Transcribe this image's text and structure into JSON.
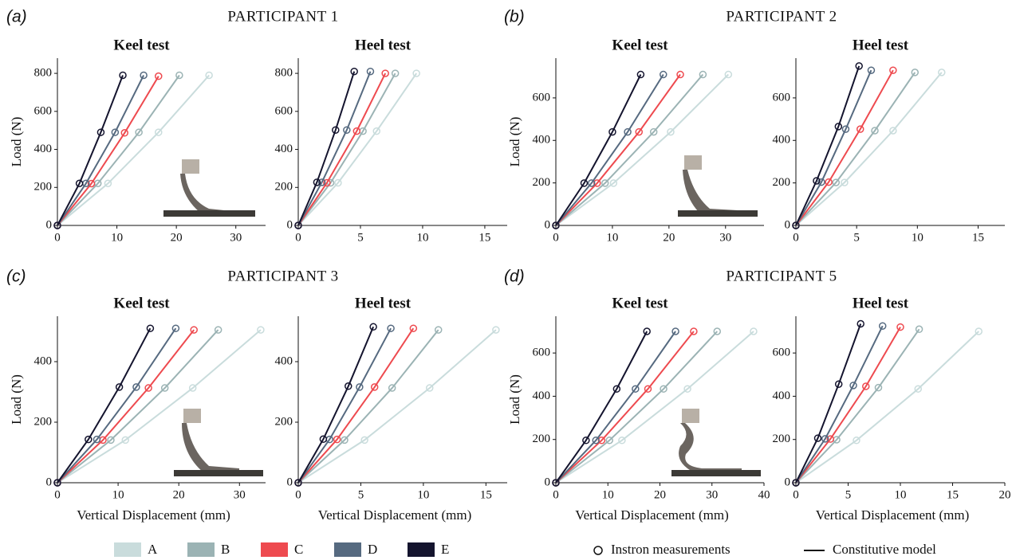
{
  "panels": [
    {
      "label": "(a)",
      "title": "PARTICIPANT 1"
    },
    {
      "label": "(b)",
      "title": "PARTICIPANT 2"
    },
    {
      "label": "(c)",
      "title": "PARTICIPANT 3"
    },
    {
      "label": "(d)",
      "title": "PARTICIPANT 5"
    }
  ],
  "legend_notes": {
    "measurements": "Instron measurements",
    "model": "Constitutive model"
  },
  "chart_data": [
    {
      "type": "line",
      "title": "Keel test",
      "y_label": "Load (N)",
      "xlim": [
        0,
        35
      ],
      "xticks": [
        0,
        10,
        20,
        30
      ],
      "ylim": [
        0,
        880
      ],
      "yticks": [
        0,
        200,
        400,
        600,
        800
      ],
      "series": [
        {
          "name": "A",
          "color": "#c9dcdc",
          "x": [
            0,
            8.5,
            17,
            25.5
          ],
          "values": [
            0,
            221,
            490,
            790
          ]
        },
        {
          "name": "B",
          "color": "#9bb3b4",
          "x": [
            0,
            6.8,
            13.7,
            20.5
          ],
          "values": [
            0,
            221,
            490,
            790
          ]
        },
        {
          "name": "C",
          "color": "#ee4a4f",
          "x": [
            0,
            5.7,
            11.3,
            17
          ],
          "values": [
            0,
            220,
            487,
            785
          ]
        },
        {
          "name": "D",
          "color": "#566a80",
          "x": [
            0,
            4.8,
            9.7,
            14.5
          ],
          "values": [
            0,
            221,
            490,
            790
          ]
        },
        {
          "name": "E",
          "color": "#14142e",
          "x": [
            0,
            3.7,
            7.3,
            11
          ],
          "values": [
            0,
            221,
            490,
            790
          ]
        }
      ]
    },
    {
      "type": "line",
      "title": "Heel test",
      "xlim": [
        0,
        16.8
      ],
      "xticks": [
        0,
        5,
        10,
        15
      ],
      "ylim": [
        0,
        880
      ],
      "yticks": [
        0,
        200,
        400,
        600,
        800
      ],
      "series": [
        {
          "name": "A",
          "color": "#c9dcdc",
          "x": [
            0,
            3.2,
            6.3,
            9.5
          ],
          "values": [
            0,
            224,
            496,
            800
          ]
        },
        {
          "name": "B",
          "color": "#9bb3b4",
          "x": [
            0,
            2.6,
            5.2,
            7.8
          ],
          "values": [
            0,
            224,
            496,
            800
          ]
        },
        {
          "name": "C",
          "color": "#ee4a4f",
          "x": [
            0,
            2.3,
            4.7,
            7
          ],
          "values": [
            0,
            224,
            496,
            800
          ]
        },
        {
          "name": "D",
          "color": "#566a80",
          "x": [
            0,
            1.9,
            3.9,
            5.8
          ],
          "values": [
            0,
            227,
            502,
            810
          ]
        },
        {
          "name": "E",
          "color": "#14142e",
          "x": [
            0,
            1.5,
            3,
            4.5
          ],
          "values": [
            0,
            227,
            502,
            810
          ]
        }
      ]
    },
    {
      "type": "line",
      "title": "Keel test",
      "y_label": "Load (N)",
      "xlim": [
        0,
        36.8
      ],
      "xticks": [
        0,
        10,
        20,
        30
      ],
      "ylim": [
        0,
        787
      ],
      "yticks": [
        0,
        200,
        400,
        600
      ],
      "series": [
        {
          "name": "A",
          "color": "#c9dcdc",
          "x": [
            0,
            10.2,
            20.3,
            30.5
          ],
          "values": [
            0,
            199,
            440,
            710
          ]
        },
        {
          "name": "B",
          "color": "#9bb3b4",
          "x": [
            0,
            8.7,
            17.3,
            26
          ],
          "values": [
            0,
            199,
            440,
            710
          ]
        },
        {
          "name": "C",
          "color": "#ee4a4f",
          "x": [
            0,
            7.3,
            14.7,
            22
          ],
          "values": [
            0,
            199,
            440,
            710
          ]
        },
        {
          "name": "D",
          "color": "#566a80",
          "x": [
            0,
            6.3,
            12.7,
            19
          ],
          "values": [
            0,
            199,
            440,
            710
          ]
        },
        {
          "name": "E",
          "color": "#14142e",
          "x": [
            0,
            5,
            10,
            15
          ],
          "values": [
            0,
            199,
            440,
            710
          ]
        }
      ]
    },
    {
      "type": "line",
      "title": "Heel test",
      "xlim": [
        0,
        17.2
      ],
      "xticks": [
        0,
        5,
        10,
        15
      ],
      "ylim": [
        0,
        787
      ],
      "yticks": [
        0,
        200,
        400,
        600
      ],
      "series": [
        {
          "name": "A",
          "color": "#c9dcdc",
          "x": [
            0,
            4,
            8,
            12
          ],
          "values": [
            0,
            202,
            446,
            720
          ]
        },
        {
          "name": "B",
          "color": "#9bb3b4",
          "x": [
            0,
            3.3,
            6.5,
            9.8
          ],
          "values": [
            0,
            202,
            446,
            720
          ]
        },
        {
          "name": "C",
          "color": "#ee4a4f",
          "x": [
            0,
            2.7,
            5.3,
            8
          ],
          "values": [
            0,
            204,
            453,
            730
          ]
        },
        {
          "name": "D",
          "color": "#566a80",
          "x": [
            0,
            2.1,
            4.1,
            6.2
          ],
          "values": [
            0,
            204,
            453,
            730
          ]
        },
        {
          "name": "E",
          "color": "#14142e",
          "x": [
            0,
            1.7,
            3.5,
            5.2
          ],
          "values": [
            0,
            210,
            465,
            750
          ]
        }
      ]
    },
    {
      "type": "line",
      "title": "Keel test",
      "y_label": "Load (N)",
      "x_label": "Vertical Displacement (mm)",
      "xlim": [
        0,
        34.3
      ],
      "xticks": [
        0,
        10,
        20,
        30
      ],
      "ylim": [
        0,
        550
      ],
      "yticks": [
        0,
        200,
        400
      ],
      "series": [
        {
          "name": "A",
          "color": "#c9dcdc",
          "x": [
            0,
            11.2,
            22.3,
            33.5
          ],
          "values": [
            0,
            141,
            313,
            505
          ]
        },
        {
          "name": "B",
          "color": "#9bb3b4",
          "x": [
            0,
            8.8,
            17.7,
            26.5
          ],
          "values": [
            0,
            141,
            313,
            505
          ]
        },
        {
          "name": "C",
          "color": "#ee4a4f",
          "x": [
            0,
            7.5,
            15,
            22.5
          ],
          "values": [
            0,
            141,
            313,
            505
          ]
        },
        {
          "name": "D",
          "color": "#566a80",
          "x": [
            0,
            6.5,
            13,
            19.5
          ],
          "values": [
            0,
            143,
            316,
            510
          ]
        },
        {
          "name": "E",
          "color": "#14142e",
          "x": [
            0,
            5.1,
            10.2,
            15.3
          ],
          "values": [
            0,
            143,
            316,
            510
          ]
        }
      ]
    },
    {
      "type": "line",
      "title": "Heel test",
      "x_label": "Vertical Displacement (mm)",
      "xlim": [
        0,
        16.7
      ],
      "xticks": [
        0,
        5,
        10,
        15
      ],
      "ylim": [
        0,
        550
      ],
      "yticks": [
        0,
        200,
        400
      ],
      "series": [
        {
          "name": "A",
          "color": "#c9dcdc",
          "x": [
            0,
            5.3,
            10.5,
            15.8
          ],
          "values": [
            0,
            141,
            313,
            505
          ]
        },
        {
          "name": "B",
          "color": "#9bb3b4",
          "x": [
            0,
            3.7,
            7.5,
            11.2
          ],
          "values": [
            0,
            141,
            313,
            505
          ]
        },
        {
          "name": "C",
          "color": "#ee4a4f",
          "x": [
            0,
            3.1,
            6.1,
            9.2
          ],
          "values": [
            0,
            143,
            316,
            510
          ]
        },
        {
          "name": "D",
          "color": "#566a80",
          "x": [
            0,
            2.5,
            4.9,
            7.4
          ],
          "values": [
            0,
            143,
            316,
            510
          ]
        },
        {
          "name": "E",
          "color": "#14142e",
          "x": [
            0,
            2,
            4,
            6
          ],
          "values": [
            0,
            144,
            319,
            515
          ]
        }
      ]
    },
    {
      "type": "line",
      "title": "Keel test",
      "y_label": "Load (N)",
      "x_label": "Vertical Displacement (mm)",
      "xlim": [
        0,
        40
      ],
      "xticks": [
        0,
        10,
        20,
        30,
        40
      ],
      "ylim": [
        0,
        770
      ],
      "yticks": [
        0,
        200,
        400,
        600
      ],
      "series": [
        {
          "name": "A",
          "color": "#c9dcdc",
          "x": [
            0,
            12.7,
            25.3,
            38
          ],
          "values": [
            0,
            196,
            434,
            700
          ]
        },
        {
          "name": "B",
          "color": "#9bb3b4",
          "x": [
            0,
            10.3,
            20.7,
            31
          ],
          "values": [
            0,
            196,
            434,
            700
          ]
        },
        {
          "name": "C",
          "color": "#ee4a4f",
          "x": [
            0,
            8.8,
            17.7,
            26.5
          ],
          "values": [
            0,
            196,
            434,
            700
          ]
        },
        {
          "name": "D",
          "color": "#566a80",
          "x": [
            0,
            7.7,
            15.3,
            23
          ],
          "values": [
            0,
            196,
            434,
            700
          ]
        },
        {
          "name": "E",
          "color": "#14142e",
          "x": [
            0,
            5.8,
            11.7,
            17.5
          ],
          "values": [
            0,
            196,
            434,
            700
          ]
        }
      ]
    },
    {
      "type": "line",
      "title": "Heel test",
      "x_label": "Vertical Displacement (mm)",
      "xlim": [
        0,
        20
      ],
      "xticks": [
        0,
        5,
        10,
        15,
        20
      ],
      "ylim": [
        0,
        770
      ],
      "yticks": [
        0,
        200,
        400,
        600
      ],
      "series": [
        {
          "name": "A",
          "color": "#c9dcdc",
          "x": [
            0,
            5.8,
            11.7,
            17.5
          ],
          "values": [
            0,
            196,
            434,
            700
          ]
        },
        {
          "name": "B",
          "color": "#9bb3b4",
          "x": [
            0,
            3.9,
            7.9,
            11.8
          ],
          "values": [
            0,
            199,
            440,
            710
          ]
        },
        {
          "name": "C",
          "color": "#ee4a4f",
          "x": [
            0,
            3.3,
            6.7,
            10
          ],
          "values": [
            0,
            202,
            446,
            720
          ]
        },
        {
          "name": "D",
          "color": "#566a80",
          "x": [
            0,
            2.8,
            5.5,
            8.3
          ],
          "values": [
            0,
            203,
            450,
            725
          ]
        },
        {
          "name": "E",
          "color": "#14142e",
          "x": [
            0,
            2.1,
            4.1,
            6.2
          ],
          "values": [
            0,
            206,
            456,
            735
          ]
        }
      ]
    }
  ]
}
